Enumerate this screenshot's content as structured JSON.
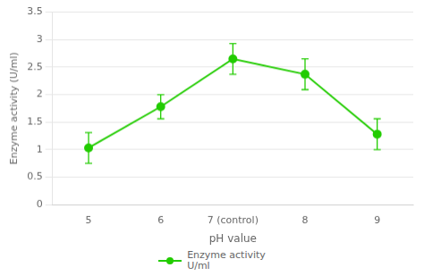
{
  "chart_data": {
    "type": "line",
    "categories": [
      "5",
      "6",
      "7 (control)",
      "8",
      "9"
    ],
    "series": [
      {
        "name": "Enzyme activity\nU/ml",
        "color": "#22cc00",
        "marker": "circle",
        "values": [
          1.03,
          1.78,
          2.65,
          2.37,
          1.28
        ],
        "errors": [
          0.28,
          0.22,
          0.28,
          0.28,
          0.28
        ]
      }
    ],
    "xlabel": "pH value",
    "ylabel": "Enzyme activity (U/ml)",
    "ylim": [
      0,
      3.5
    ],
    "yticks": [
      0,
      0.5,
      1,
      1.5,
      2,
      2.5,
      3,
      3.5
    ],
    "grid": true,
    "legend": "bottom"
  }
}
